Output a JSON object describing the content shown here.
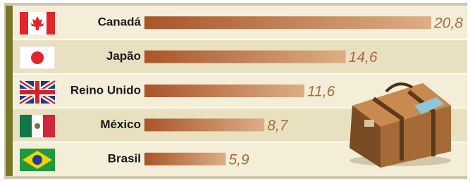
{
  "chart_data": {
    "type": "bar",
    "orientation": "horizontal",
    "categories": [
      "Canadá",
      "Japão",
      "Reino Unido",
      "México",
      "Brasil"
    ],
    "values": [
      20.8,
      14.6,
      11.6,
      8.7,
      5.9
    ],
    "value_labels": [
      "20,8",
      "14,6",
      "11,6",
      "8,7",
      "5,9"
    ],
    "color": "#a9552a"
  }
}
